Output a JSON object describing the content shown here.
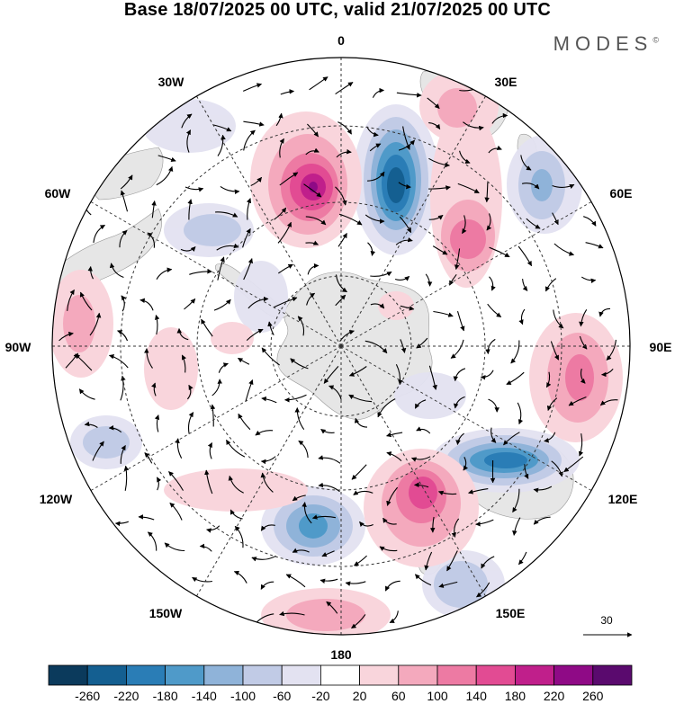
{
  "title": "Base 18/07/2025 00 UTC, valid 21/07/2025 00 UTC",
  "brand": "MODES",
  "brand_mark": "©",
  "longitude_labels": [
    "0",
    "30E",
    "60E",
    "90E",
    "120E",
    "150E",
    "180",
    "150W",
    "120W",
    "90W",
    "60W",
    "30W"
  ],
  "reference_vector_label": "30",
  "colorbar": {
    "tick_labels": [
      "-260",
      "-220",
      "-180",
      "-140",
      "-100",
      "-60",
      "-20",
      "20",
      "60",
      "100",
      "140",
      "180",
      "220",
      "260"
    ],
    "colors": [
      "#0b3a5c",
      "#145f91",
      "#2a7db6",
      "#4f9ac9",
      "#8fb3d9",
      "#c1cbe6",
      "#e3e2f1",
      "#ffffff",
      "#f9d5dc",
      "#f4a9bd",
      "#ed7aa3",
      "#e24b93",
      "#c01f8b",
      "#8f0a86",
      "#5a0a6e"
    ]
  },
  "colors": {
    "land": "#e6e6e6",
    "positive_anomaly": "#f4a9bd",
    "negative_anomaly": "#8fb3d9",
    "grid": "#333333"
  }
}
